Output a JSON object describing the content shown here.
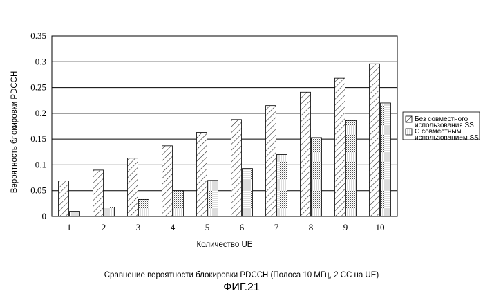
{
  "chart_data": {
    "type": "bar",
    "title": "",
    "xlabel": "Количество UE",
    "ylabel": "Вероятность блокировки PDCCH",
    "categories": [
      "1",
      "2",
      "3",
      "4",
      "5",
      "6",
      "7",
      "8",
      "9",
      "10"
    ],
    "yticks": [
      "0",
      "0.05",
      "0.1",
      "0.15",
      "0.2",
      "0.25",
      "0.3",
      "0.35"
    ],
    "ylim": [
      0,
      0.35
    ],
    "grid": "horizontal",
    "legend_position": "right",
    "series": [
      {
        "name_lines": [
          "Без совместного",
          "использования SS"
        ],
        "fill": "hatch",
        "values": [
          0.069,
          0.09,
          0.113,
          0.137,
          0.163,
          0.188,
          0.215,
          0.241,
          0.268,
          0.296
        ]
      },
      {
        "name_lines": [
          "С совместным",
          "использованием SS"
        ],
        "fill": "dots",
        "values": [
          0.01,
          0.018,
          0.033,
          0.05,
          0.07,
          0.093,
          0.12,
          0.153,
          0.186,
          0.22
        ]
      }
    ]
  },
  "caption": "Сравнение вероятности блокировки PDCCH  (Полоса 10 МГц, 2 CC на UE)",
  "figure_label": "ФИГ.21"
}
